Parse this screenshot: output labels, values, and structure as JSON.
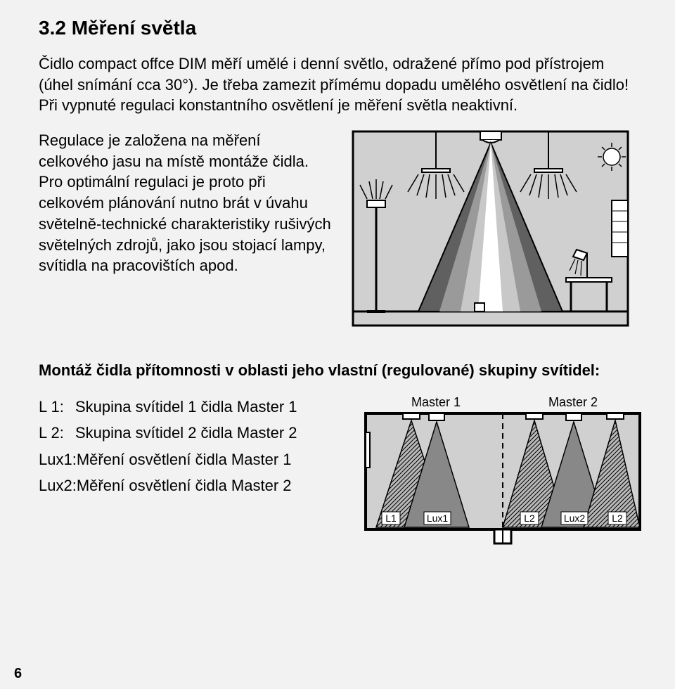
{
  "section": {
    "number": "3.2",
    "title": "Měření světla"
  },
  "intro": "Čidlo compact offce DIM měří umělé i denní světlo, odražené přímo pod přístrojem (úhel snímání cca 30°). Je třeba zamezit přímému dopadu umělého osvětlení na čidlo! Při vypnuté regulaci konstantního osvětlení je měření světla neaktivní.",
  "body_para": "Regulace je založena na měření celkového jasu na místě montáže čidla. Pro optimální regulaci je proto při celkovém plánování nutno brát v úvahu světelně-technické charakteristiky rušivých světelných zdrojů, jako jsou stojací lampy, svítidla na pracovištích apod.",
  "subtitle": "Montáž čidla přítomnosti v oblasti jeho vlastní (regulované) skupiny svítidel:",
  "list": [
    {
      "key": "L 1:",
      "text": "Skupina svítidel 1 čidla Master 1"
    },
    {
      "key": "L 2:",
      "text": "Skupina svítidel 2 čidla Master 2"
    },
    {
      "key": "Lux1:",
      "text": "Měření osvětlení čidla Master 1"
    },
    {
      "key": "Lux2:",
      "text": "Měření osvětlení čidla Master 2"
    }
  ],
  "diagram1": {
    "bg": "#d0d0d0",
    "stroke": "#000000",
    "dark": "#606060",
    "mid": "#9a9a9a",
    "light": "#c8c8c8",
    "white": "#ffffff"
  },
  "diagram2": {
    "bg": "#d0d0d0",
    "stroke": "#000000",
    "cone_outer": "#b8b8b8",
    "cone_inner": "#888888",
    "labels": {
      "m1": "Master 1",
      "m2": "Master 2",
      "l1": "L1",
      "lux1": "Lux1",
      "l2": "L2",
      "lux2": "Lux2",
      "l2b": "L2"
    },
    "label_bg": "#ffffff",
    "label_stroke": "#000000",
    "font_size": 16
  },
  "page_number": "6"
}
